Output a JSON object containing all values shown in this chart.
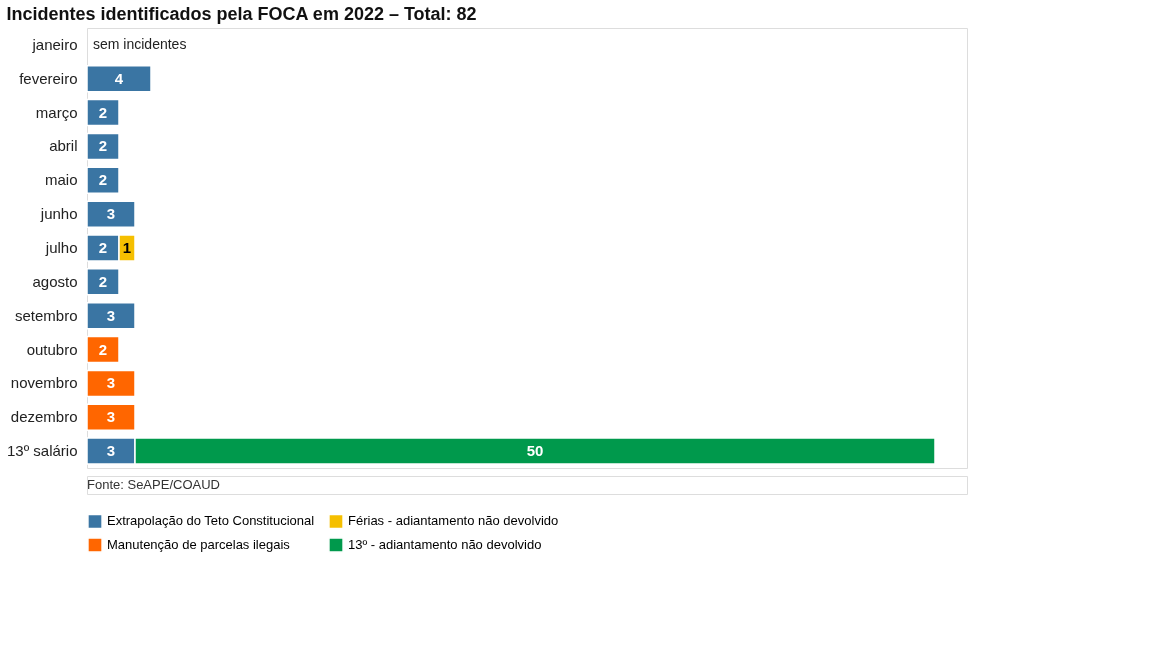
{
  "chart_data": {
    "type": "bar",
    "orientation": "horizontal",
    "stacked": true,
    "data_labels": true,
    "legend": "bottom",
    "grid": false,
    "tick_labels": "y",
    "title": "Incidentes identificados pela FOCA em 2022 – Total: 82",
    "categories": [
      "janeiro",
      "fevereiro",
      "março",
      "abril",
      "maio",
      "junho",
      "julho",
      "agosto",
      "setembro",
      "outubro",
      "novembro",
      "dezembro",
      "13º salário"
    ],
    "series": [
      {
        "name": "Extrapolação do Teto Constitucional",
        "color": "#3a75a3",
        "values": [
          null,
          4,
          2,
          2,
          2,
          3,
          2,
          2,
          3,
          null,
          null,
          null,
          3
        ]
      },
      {
        "name": "Férias - adiantamento não devolvido",
        "color": "#f5bf00",
        "values": [
          null,
          null,
          null,
          null,
          null,
          null,
          1,
          null,
          null,
          null,
          null,
          null,
          null
        ]
      },
      {
        "name": "Manutenção de parcelas ilegais",
        "color": "#ff6600",
        "values": [
          null,
          null,
          null,
          null,
          null,
          null,
          null,
          null,
          null,
          2,
          3,
          3,
          null
        ]
      },
      {
        "name": "13º - adiantamento não devolvido",
        "color": "#00994c",
        "values": [
          null,
          null,
          null,
          null,
          null,
          null,
          null,
          null,
          null,
          null,
          null,
          null,
          50
        ]
      }
    ],
    "annotations": [
      "sem incidentes",
      "Fonte: SeAPE/COAUD"
    ]
  }
}
